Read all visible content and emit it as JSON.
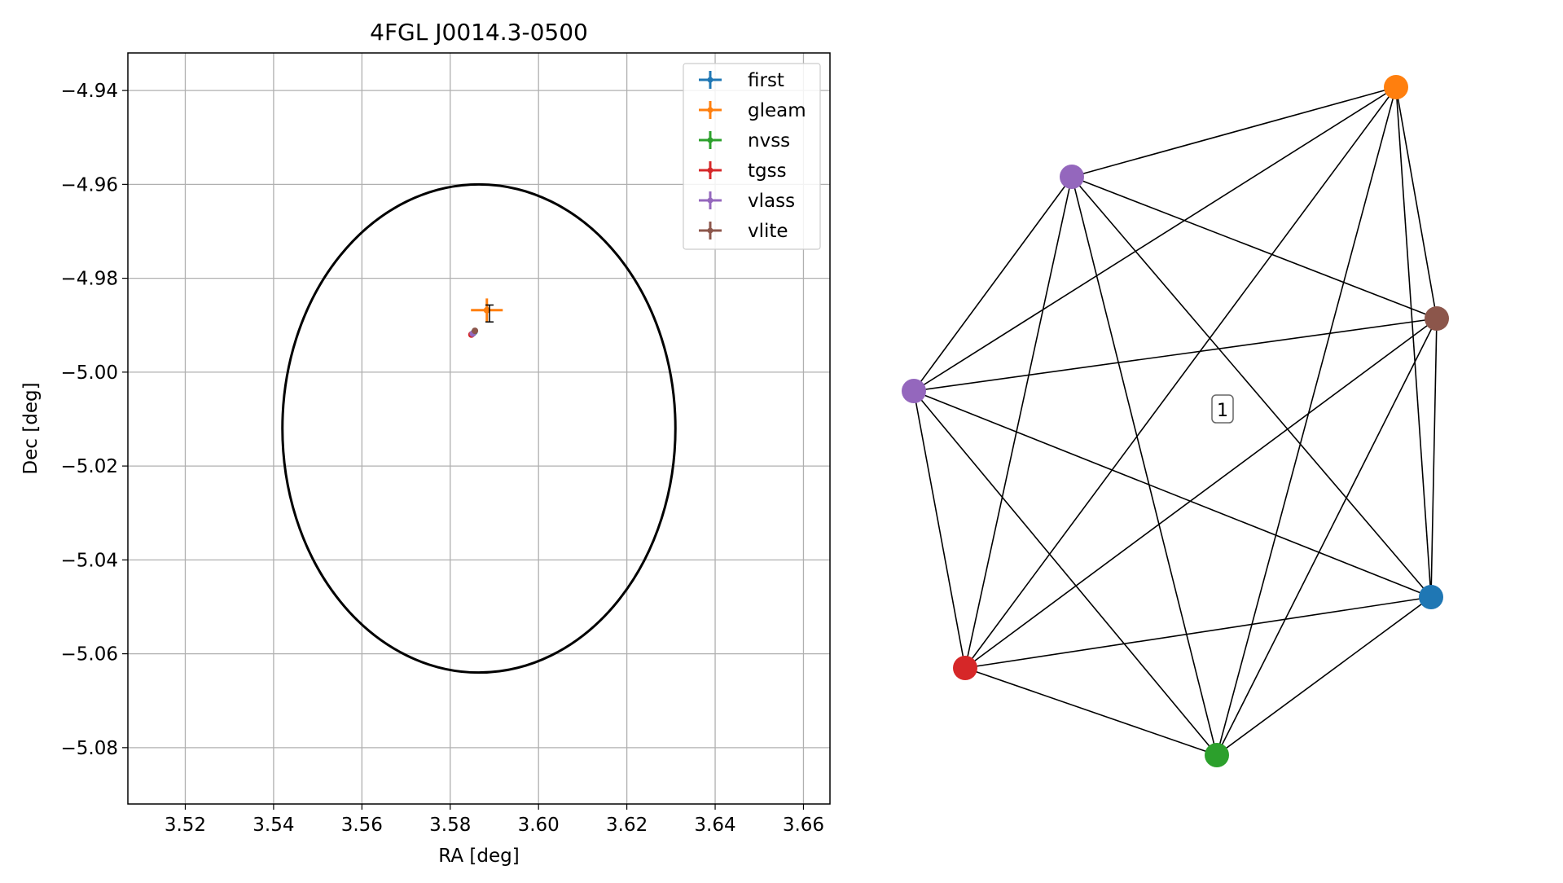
{
  "chart_data": [
    {
      "type": "scatter",
      "title": "4FGL J0014.3-0500",
      "xlabel": "RA [deg]",
      "ylabel": "Dec [deg]",
      "xlim": [
        3.507,
        3.666
      ],
      "ylim": [
        -5.092,
        -4.932
      ],
      "xticks": [
        3.52,
        3.54,
        3.56,
        3.58,
        3.6,
        3.62,
        3.64,
        3.66
      ],
      "xtick_labels": [
        "3.52",
        "3.54",
        "3.56",
        "3.58",
        "3.60",
        "3.62",
        "3.64",
        "3.66"
      ],
      "yticks": [
        -4.94,
        -4.96,
        -4.98,
        -5.0,
        -5.02,
        -5.04,
        -5.06,
        -5.08
      ],
      "ytick_labels": [
        "−4.94",
        "−4.96",
        "−4.98",
        "−5.00",
        "−5.02",
        "−5.04",
        "−5.06",
        "−5.08"
      ],
      "grid": true,
      "legend_position": "top-right",
      "series": [
        {
          "name": "first",
          "color": "#1f77b4",
          "x": 3.5855,
          "y": -4.9914,
          "xerr": 0.0003,
          "yerr": 0.0003
        },
        {
          "name": "gleam",
          "color": "#ff7f0e",
          "x": 3.5883,
          "y": -4.9868,
          "xerr": 0.0036,
          "yerr": 0.0025
        },
        {
          "name": "nvss",
          "color": "#2ca02c",
          "x": 3.5852,
          "y": -4.9917,
          "xerr": 0.0004,
          "yerr": 0.0004
        },
        {
          "name": "tgss",
          "color": "#d62728",
          "x": 3.5848,
          "y": -4.992,
          "xerr": 0.0005,
          "yerr": 0.0005
        },
        {
          "name": "vlass",
          "color": "#9467bd",
          "x": 3.5851,
          "y": -4.9918,
          "xerr": 0.0003,
          "yerr": 0.0003
        },
        {
          "name": "vlite",
          "color": "#8c564b",
          "x": 3.5856,
          "y": -4.9912,
          "xerr": 0.0004,
          "yerr": 0.0004
        }
      ],
      "error_bar": {
        "color": "#000000",
        "x": 3.5889,
        "y": -4.9875,
        "yerr": 0.0018
      },
      "ellipse": {
        "center": [
          3.5865,
          -5.012
        ],
        "semi_ra": 0.0445,
        "semi_dec": 0.052,
        "color": "#000000"
      }
    },
    {
      "type": "graph",
      "nodes": [
        {
          "id": "first",
          "color": "#1f77b4"
        },
        {
          "id": "gleam",
          "color": "#ff7f0e"
        },
        {
          "id": "nvss",
          "color": "#2ca02c"
        },
        {
          "id": "tgss",
          "color": "#d62728"
        },
        {
          "id": "vlass",
          "color": "#9467bd"
        },
        {
          "id": "vlite",
          "color": "#8c564b"
        },
        {
          "id": "vlass_2",
          "color": "#9467bd"
        }
      ],
      "edges": "complete",
      "component_label": "1"
    }
  ]
}
